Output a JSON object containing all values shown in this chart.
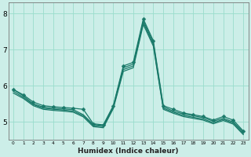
{
  "xlabel": "Humidex (Indice chaleur)",
  "background_color": "#cceee8",
  "grid_color": "#99ddcc",
  "line_color": "#1a7a6a",
  "x_values": [
    0,
    1,
    2,
    3,
    4,
    5,
    6,
    7,
    8,
    9,
    10,
    11,
    12,
    13,
    14,
    15,
    16,
    17,
    18,
    19,
    20,
    21,
    22,
    23
  ],
  "series_main": [
    5.9,
    5.75,
    5.55,
    5.45,
    5.42,
    5.4,
    5.38,
    5.35,
    4.95,
    4.92,
    5.45,
    6.55,
    6.65,
    7.85,
    7.25,
    5.45,
    5.35,
    5.25,
    5.2,
    5.15,
    5.05,
    5.15,
    5.05,
    4.75
  ],
  "series_extra": [
    [
      5.9,
      5.72,
      5.5,
      5.41,
      5.38,
      5.36,
      5.34,
      5.2,
      4.93,
      4.9,
      5.43,
      6.5,
      6.6,
      7.8,
      7.2,
      5.42,
      5.3,
      5.22,
      5.17,
      5.12,
      5.02,
      5.1,
      5.0,
      4.72
    ],
    [
      5.85,
      5.68,
      5.48,
      5.38,
      5.35,
      5.33,
      5.3,
      5.17,
      4.9,
      4.87,
      5.4,
      6.45,
      6.55,
      7.75,
      7.15,
      5.38,
      5.27,
      5.18,
      5.13,
      5.08,
      4.98,
      5.07,
      4.97,
      4.68
    ],
    [
      5.8,
      5.65,
      5.45,
      5.35,
      5.32,
      5.3,
      5.27,
      5.14,
      4.87,
      4.84,
      5.37,
      6.4,
      6.5,
      7.7,
      7.1,
      5.35,
      5.24,
      5.15,
      5.1,
      5.05,
      4.95,
      5.04,
      4.94,
      4.65
    ]
  ],
  "ylim": [
    4.5,
    8.3
  ],
  "yticks": [
    5,
    6,
    7,
    8
  ],
  "xlim": [
    -0.5,
    23.5
  ],
  "markersize": 2.5,
  "linewidth": 0.9
}
